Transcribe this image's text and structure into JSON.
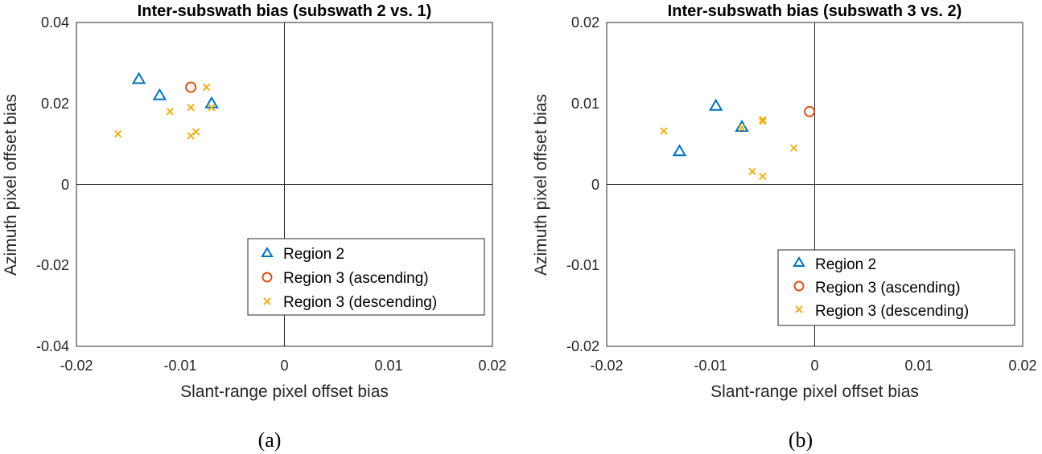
{
  "colors": {
    "region2": "#0072BD",
    "region3_ascending": "#D95319",
    "region3_descending": "#EDB120",
    "axis": "#262626"
  },
  "chart_data": [
    {
      "type": "scatter",
      "title": "Inter-subswath bias (subswath 2 vs. 1)",
      "xlabel": "Slant-range pixel offset bias",
      "ylabel": "Azimuth pixel offset bias",
      "xlim": [
        -0.02,
        0.02
      ],
      "ylim": [
        -0.04,
        0.04
      ],
      "xticks": [
        "-0.02",
        "-0.01",
        "0",
        "0.01",
        "0.02"
      ],
      "yticks": [
        "0.04",
        "0.02",
        "0",
        "-0.02",
        "-0.04"
      ],
      "grid": false,
      "zero_lines": true,
      "legend_position": "bottom-right",
      "caption": "(a)",
      "series": [
        {
          "name": "Region 2",
          "marker": "triangle",
          "color": "#0072BD",
          "points": [
            [
              -0.014,
              0.026
            ],
            [
              -0.012,
              0.022
            ],
            [
              -0.007,
              0.02
            ]
          ]
        },
        {
          "name": "Region 3 (ascending)",
          "marker": "circle",
          "color": "#D95319",
          "points": [
            [
              -0.009,
              0.024
            ]
          ]
        },
        {
          "name": "Region 3 (descending)",
          "marker": "x",
          "color": "#EDB120",
          "points": [
            [
              -0.016,
              0.0125
            ],
            [
              -0.011,
              0.018
            ],
            [
              -0.009,
              0.019
            ],
            [
              -0.0075,
              0.024
            ],
            [
              -0.007,
              0.019
            ],
            [
              -0.0085,
              0.013
            ],
            [
              -0.009,
              0.012
            ]
          ]
        }
      ]
    },
    {
      "type": "scatter",
      "title": "Inter-subswath bias (subswath 3 vs. 2)",
      "xlabel": "Slant-range pixel offset bias",
      "ylabel": "Azimuth pixel offset bias",
      "xlim": [
        -0.02,
        0.02
      ],
      "ylim": [
        -0.02,
        0.02
      ],
      "xticks": [
        "-0.02",
        "-0.01",
        "0",
        "0.01",
        "0.02"
      ],
      "yticks": [
        "0.02",
        "0.01",
        "0",
        "-0.01",
        "-0.02"
      ],
      "grid": false,
      "zero_lines": true,
      "legend_position": "bottom-right",
      "caption": "(b)",
      "series": [
        {
          "name": "Region 2",
          "marker": "triangle",
          "color": "#0072BD",
          "points": [
            [
              -0.0095,
              0.0097
            ],
            [
              -0.007,
              0.0071
            ],
            [
              -0.013,
              0.0041
            ]
          ]
        },
        {
          "name": "Region 3 (ascending)",
          "marker": "circle",
          "color": "#D95319",
          "points": [
            [
              -0.0005,
              0.009
            ]
          ]
        },
        {
          "name": "Region 3 (descending)",
          "marker": "x",
          "color": "#EDB120",
          "points": [
            [
              -0.0145,
              0.0066
            ],
            [
              -0.007,
              0.007
            ],
            [
              -0.005,
              0.0078
            ],
            [
              -0.005,
              0.008
            ],
            [
              -0.002,
              0.0045
            ],
            [
              -0.006,
              0.0016
            ],
            [
              -0.005,
              0.001
            ]
          ]
        }
      ]
    }
  ]
}
